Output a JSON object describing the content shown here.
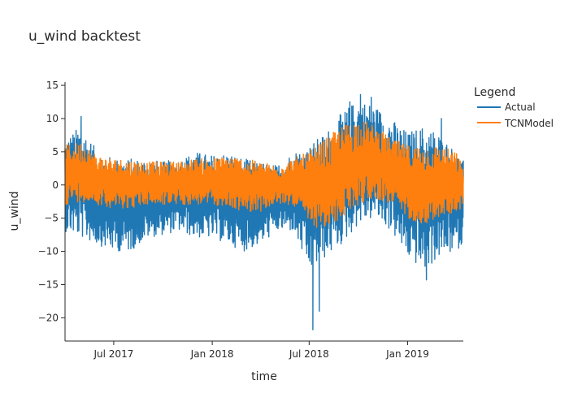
{
  "chart_data": {
    "type": "line",
    "title": "u_wind backtest",
    "xlabel": "time",
    "ylabel": "u_wind",
    "x_range": [
      "2017-04-01",
      "2019-04-15"
    ],
    "ylim": [
      -23.5,
      15.5
    ],
    "x_ticks": [
      {
        "date": "2017-07-01",
        "label": "Jul 2017"
      },
      {
        "date": "2018-01-01",
        "label": "Jan 2018"
      },
      {
        "date": "2018-07-01",
        "label": "Jul 2018"
      },
      {
        "date": "2019-01-01",
        "label": "Jan 2019"
      }
    ],
    "y_ticks": [
      15,
      10,
      5,
      0,
      -5,
      -10,
      -15,
      -20
    ],
    "y_tick_labels": [
      "15",
      "10",
      "5",
      "0",
      "−5",
      "−10",
      "−15",
      "−20"
    ],
    "grid": false,
    "legend": {
      "title": "Legend",
      "position": "right"
    },
    "series": [
      {
        "name": "Actual",
        "color": "#1f77b4",
        "x": [
          "2017-04-01",
          "2017-05-01",
          "2017-06-01",
          "2017-07-01",
          "2017-08-01",
          "2017-09-01",
          "2017-10-01",
          "2017-11-01",
          "2017-12-01",
          "2018-01-01",
          "2018-02-01",
          "2018-03-01",
          "2018-04-01",
          "2018-05-01",
          "2018-06-01",
          "2018-07-01",
          "2018-08-01",
          "2018-09-01",
          "2018-10-01",
          "2018-11-01",
          "2018-12-01",
          "2019-01-01",
          "2019-02-01",
          "2019-03-01",
          "2019-04-01",
          "2019-04-15"
        ],
        "upper": [
          7,
          9,
          5,
          4,
          4,
          4,
          3.5,
          4,
          5,
          4.5,
          5,
          4,
          3.5,
          3,
          5,
          6,
          8,
          11,
          13,
          12,
          10,
          8,
          9,
          8,
          5,
          4
        ],
        "lower": [
          -7,
          -8,
          -9,
          -10,
          -10,
          -8,
          -7.5,
          -7,
          -8,
          -8,
          -9,
          -10,
          -9,
          -7,
          -7,
          -13,
          -11,
          -9,
          -6,
          -5,
          -7,
          -11,
          -13,
          -11,
          -10,
          -9
        ],
        "extremes": [
          {
            "x": "2017-05-01",
            "y": 10.3
          },
          {
            "x": "2018-07-08",
            "y": -21.8
          },
          {
            "x": "2018-07-20",
            "y": -19
          },
          {
            "x": "2018-10-05",
            "y": 13.6
          },
          {
            "x": "2018-09-15",
            "y": 12.5
          },
          {
            "x": "2018-10-25",
            "y": 13.2
          },
          {
            "x": "2019-02-05",
            "y": -14.3
          },
          {
            "x": "2019-03-05",
            "y": 10
          }
        ]
      },
      {
        "name": "TCNModel",
        "color": "#ff7f0e",
        "x": [
          "2017-04-01",
          "2017-05-01",
          "2017-06-01",
          "2017-07-01",
          "2017-08-01",
          "2017-09-01",
          "2017-10-01",
          "2017-11-01",
          "2017-12-01",
          "2018-01-01",
          "2018-02-01",
          "2018-03-01",
          "2018-04-01",
          "2018-05-01",
          "2018-06-01",
          "2018-07-01",
          "2018-08-01",
          "2018-09-01",
          "2018-10-01",
          "2018-11-01",
          "2018-12-01",
          "2019-01-01",
          "2019-02-01",
          "2019-03-01",
          "2019-04-01",
          "2019-04-15"
        ],
        "upper": [
          6,
          6.5,
          4.5,
          4,
          3.8,
          3.5,
          3.5,
          3.6,
          4,
          4,
          4.5,
          4,
          3.5,
          3,
          4,
          5,
          7,
          9,
          10,
          9,
          7,
          6,
          6,
          6,
          5,
          3
        ],
        "lower": [
          -3,
          -2.5,
          -3,
          -3.5,
          -3.5,
          -3,
          -3,
          -3,
          -3,
          -3,
          -3.5,
          -4,
          -4,
          -3,
          -3,
          -6,
          -7,
          -5,
          -3,
          -2,
          -3,
          -5,
          -6,
          -5,
          -4,
          -3.5
        ]
      }
    ]
  }
}
